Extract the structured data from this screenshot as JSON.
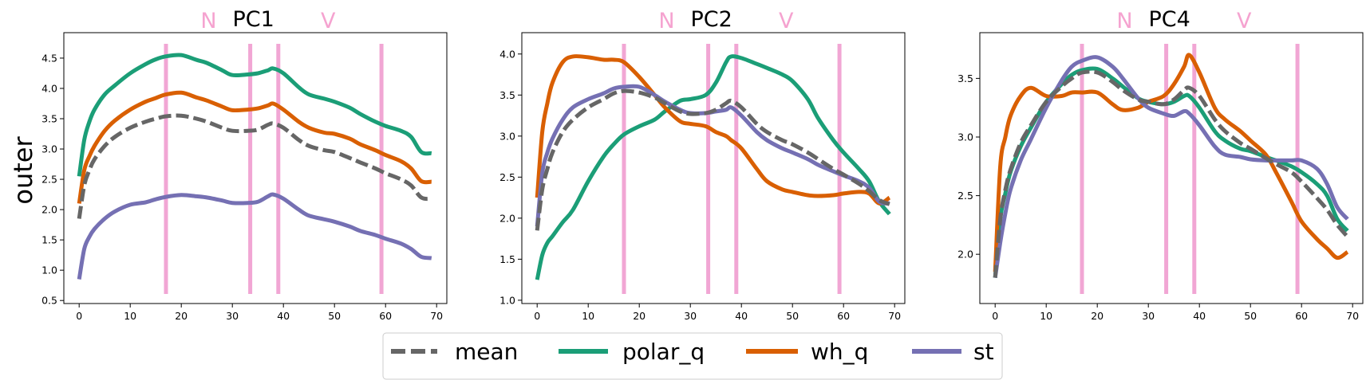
{
  "figure": {
    "ylabel": "outer",
    "marker_color": "#f1a6d4",
    "legend": {
      "placement": "bottom-center",
      "entries": [
        {
          "name": "mean",
          "color": "#666666",
          "dashed": true
        },
        {
          "name": "polar_q",
          "color": "#1b9e77",
          "dashed": false
        },
        {
          "name": "wh_q",
          "color": "#d95f02",
          "dashed": false
        },
        {
          "name": "st",
          "color": "#7570b3",
          "dashed": false
        }
      ]
    }
  },
  "chart_data": [
    {
      "type": "line",
      "title": "PC1",
      "title_markers": [
        "N",
        "V"
      ],
      "xlim": [
        -3,
        72
      ],
      "ylim": [
        0.45,
        4.92
      ],
      "xticks": [
        0,
        10,
        20,
        30,
        40,
        50,
        60,
        70
      ],
      "yticks": [
        0.5,
        1.0,
        1.5,
        2.0,
        2.5,
        3.0,
        3.5,
        4.0,
        4.5
      ],
      "ytick_labels": [
        "0.5",
        "1.0",
        "1.5",
        "2.0",
        "2.5",
        "3.0",
        "3.5",
        "4.0",
        "4.5"
      ],
      "vlines": [
        17,
        33.5,
        39,
        59.2
      ],
      "x": [
        0,
        1,
        2,
        3,
        5,
        7,
        10,
        13,
        15,
        17,
        20,
        23,
        25,
        28,
        30,
        33,
        35,
        37,
        38,
        40,
        43,
        45,
        48,
        50,
        53,
        55,
        58,
        60,
        63,
        65,
        67,
        69
      ],
      "series": [
        {
          "name": "mean",
          "values": [
            1.85,
            2.4,
            2.65,
            2.83,
            3.05,
            3.2,
            3.35,
            3.45,
            3.5,
            3.54,
            3.55,
            3.5,
            3.45,
            3.35,
            3.3,
            3.3,
            3.32,
            3.4,
            3.42,
            3.35,
            3.15,
            3.05,
            2.98,
            2.95,
            2.85,
            2.78,
            2.68,
            2.6,
            2.5,
            2.4,
            2.2,
            2.18
          ]
        },
        {
          "name": "polar_q",
          "values": [
            2.55,
            3.15,
            3.45,
            3.65,
            3.9,
            4.05,
            4.25,
            4.4,
            4.48,
            4.53,
            4.55,
            4.47,
            4.42,
            4.3,
            4.22,
            4.23,
            4.25,
            4.3,
            4.33,
            4.25,
            4.02,
            3.9,
            3.83,
            3.78,
            3.68,
            3.58,
            3.45,
            3.38,
            3.3,
            3.2,
            2.95,
            2.93
          ]
        },
        {
          "name": "wh_q",
          "values": [
            2.1,
            2.65,
            2.88,
            3.05,
            3.3,
            3.47,
            3.65,
            3.78,
            3.84,
            3.9,
            3.93,
            3.85,
            3.8,
            3.7,
            3.64,
            3.65,
            3.67,
            3.72,
            3.75,
            3.65,
            3.45,
            3.35,
            3.27,
            3.25,
            3.17,
            3.08,
            2.98,
            2.9,
            2.8,
            2.68,
            2.47,
            2.46
          ]
        },
        {
          "name": "st",
          "values": [
            0.85,
            1.35,
            1.55,
            1.68,
            1.85,
            1.97,
            2.08,
            2.12,
            2.17,
            2.21,
            2.24,
            2.22,
            2.2,
            2.15,
            2.11,
            2.11,
            2.13,
            2.22,
            2.25,
            2.18,
            2.0,
            1.9,
            1.84,
            1.8,
            1.72,
            1.65,
            1.58,
            1.52,
            1.44,
            1.35,
            1.22,
            1.2
          ]
        }
      ]
    },
    {
      "type": "line",
      "title": "PC2",
      "title_markers": [
        "N",
        "V"
      ],
      "xlim": [
        -3,
        72
      ],
      "ylim": [
        0.96,
        4.26
      ],
      "xticks": [
        0,
        10,
        20,
        30,
        40,
        50,
        60,
        70
      ],
      "yticks": [
        1.0,
        1.5,
        2.0,
        2.5,
        3.0,
        3.5,
        4.0
      ],
      "ytick_labels": [
        "1.0",
        "1.5",
        "2.0",
        "2.5",
        "3.0",
        "3.5",
        "4.0"
      ],
      "vlines": [
        17,
        33.5,
        39,
        59.2
      ],
      "x": [
        0,
        1,
        2,
        3,
        5,
        7,
        10,
        13,
        15,
        17,
        20,
        23,
        25,
        28,
        30,
        33,
        35,
        37,
        38,
        40,
        43,
        45,
        48,
        50,
        53,
        55,
        58,
        60,
        63,
        65,
        67,
        69
      ],
      "series": [
        {
          "name": "mean",
          "values": [
            1.85,
            2.35,
            2.6,
            2.8,
            3.05,
            3.2,
            3.35,
            3.45,
            3.52,
            3.55,
            3.53,
            3.47,
            3.4,
            3.3,
            3.27,
            3.28,
            3.32,
            3.4,
            3.43,
            3.35,
            3.15,
            3.05,
            2.95,
            2.9,
            2.8,
            2.72,
            2.6,
            2.53,
            2.42,
            2.33,
            2.22,
            2.17
          ]
        },
        {
          "name": "polar_q",
          "values": [
            1.25,
            1.55,
            1.7,
            1.78,
            1.95,
            2.1,
            2.45,
            2.75,
            2.9,
            3.02,
            3.12,
            3.2,
            3.3,
            3.43,
            3.45,
            3.5,
            3.65,
            3.9,
            3.97,
            3.95,
            3.88,
            3.83,
            3.75,
            3.67,
            3.45,
            3.22,
            2.95,
            2.8,
            2.6,
            2.45,
            2.2,
            2.05
          ]
        },
        {
          "name": "wh_q",
          "values": [
            2.25,
            3.05,
            3.4,
            3.65,
            3.9,
            3.97,
            3.96,
            3.93,
            3.93,
            3.9,
            3.72,
            3.5,
            3.35,
            3.18,
            3.15,
            3.12,
            3.05,
            3.0,
            2.95,
            2.85,
            2.6,
            2.45,
            2.35,
            2.32,
            2.28,
            2.27,
            2.28,
            2.3,
            2.32,
            2.3,
            2.18,
            2.25
          ]
        },
        {
          "name": "st",
          "values": [
            1.9,
            2.55,
            2.8,
            2.97,
            3.2,
            3.35,
            3.45,
            3.52,
            3.58,
            3.6,
            3.6,
            3.5,
            3.42,
            3.32,
            3.28,
            3.28,
            3.3,
            3.32,
            3.35,
            3.25,
            3.05,
            2.95,
            2.85,
            2.8,
            2.72,
            2.65,
            2.57,
            2.52,
            2.45,
            2.37,
            2.2,
            2.18
          ]
        }
      ]
    },
    {
      "type": "line",
      "title": "PC4",
      "title_markers": [
        "N",
        "V"
      ],
      "xlim": [
        -3,
        72
      ],
      "ylim": [
        1.58,
        3.89
      ],
      "xticks": [
        0,
        10,
        20,
        30,
        40,
        50,
        60,
        70
      ],
      "yticks": [
        2.0,
        2.5,
        3.0,
        3.5
      ],
      "ytick_labels": [
        "2.0",
        "2.5",
        "3.0",
        "3.5"
      ],
      "vlines": [
        17,
        33.5,
        39,
        59.2
      ],
      "x": [
        0,
        1,
        2,
        3,
        5,
        7,
        10,
        13,
        15,
        17,
        20,
        23,
        25,
        28,
        30,
        33,
        35,
        37,
        38,
        40,
        43,
        45,
        48,
        50,
        53,
        55,
        58,
        60,
        63,
        65,
        67,
        69
      ],
      "series": [
        {
          "name": "mean",
          "values": [
            1.8,
            2.3,
            2.55,
            2.72,
            2.95,
            3.1,
            3.3,
            3.43,
            3.5,
            3.55,
            3.55,
            3.47,
            3.4,
            3.32,
            3.3,
            3.28,
            3.32,
            3.4,
            3.42,
            3.35,
            3.15,
            3.05,
            2.95,
            2.9,
            2.82,
            2.77,
            2.7,
            2.62,
            2.48,
            2.38,
            2.25,
            2.15
          ]
        },
        {
          "name": "polar_q",
          "values": [
            1.8,
            2.3,
            2.52,
            2.7,
            2.92,
            3.08,
            3.3,
            3.45,
            3.53,
            3.57,
            3.58,
            3.5,
            3.43,
            3.33,
            3.3,
            3.28,
            3.3,
            3.35,
            3.35,
            3.25,
            3.05,
            2.97,
            2.9,
            2.88,
            2.83,
            2.8,
            2.75,
            2.7,
            2.6,
            2.5,
            2.3,
            2.2
          ]
        },
        {
          "name": "wh_q",
          "values": [
            1.85,
            2.75,
            3.0,
            3.18,
            3.35,
            3.42,
            3.35,
            3.35,
            3.38,
            3.38,
            3.38,
            3.28,
            3.23,
            3.25,
            3.3,
            3.35,
            3.45,
            3.6,
            3.7,
            3.55,
            3.25,
            3.15,
            3.05,
            2.97,
            2.85,
            2.7,
            2.45,
            2.28,
            2.13,
            2.05,
            1.97,
            2.02
          ]
        },
        {
          "name": "st",
          "values": [
            1.8,
            2.1,
            2.35,
            2.55,
            2.8,
            2.98,
            3.25,
            3.48,
            3.6,
            3.65,
            3.68,
            3.6,
            3.5,
            3.33,
            3.25,
            3.2,
            3.18,
            3.22,
            3.2,
            3.1,
            2.92,
            2.85,
            2.83,
            2.81,
            2.8,
            2.8,
            2.8,
            2.8,
            2.73,
            2.6,
            2.4,
            2.3
          ]
        }
      ]
    }
  ]
}
